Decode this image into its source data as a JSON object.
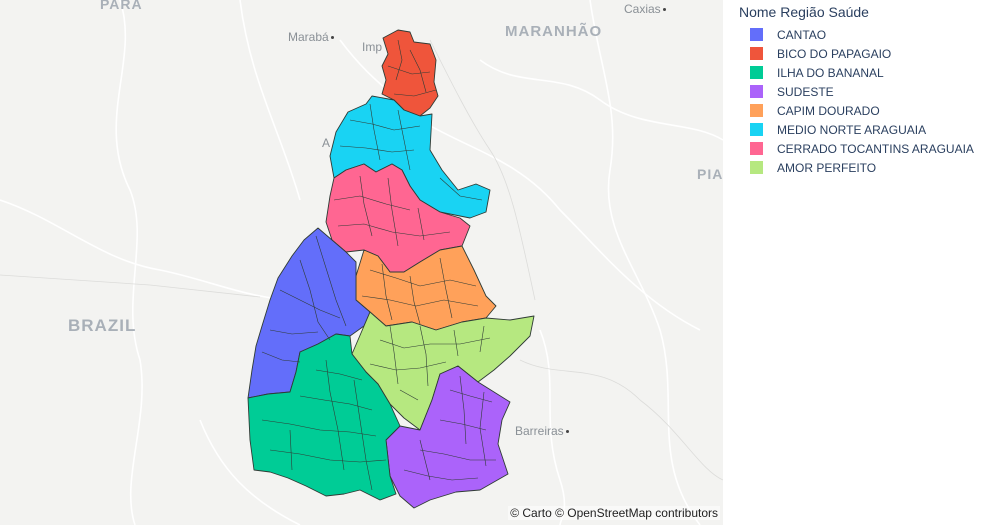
{
  "legend": {
    "title": "Nome Região Saúde",
    "items": [
      {
        "label": "CANTAO",
        "color": "#636efa"
      },
      {
        "label": "BICO DO PAPAGAIO",
        "color": "#ef553b"
      },
      {
        "label": "ILHA DO BANANAL",
        "color": "#00cc96"
      },
      {
        "label": "SUDESTE",
        "color": "#ab63fa"
      },
      {
        "label": "CAPIM DOURADO",
        "color": "#ffa15a"
      },
      {
        "label": "MEDIO NORTE ARAGUAIA",
        "color": "#19d3f3"
      },
      {
        "label": "CERRADO TOCANTINS ARAGUAIA",
        "color": "#ff6692"
      },
      {
        "label": "AMOR PERFEITO",
        "color": "#b6e880"
      }
    ]
  },
  "basemap": {
    "labels": {
      "para": "PARÁ",
      "maranhao": "MARANHÃO",
      "brazil": "BRAZIL",
      "piaui": "PIA",
      "maraba": "Marabá",
      "caxias": "Caxias",
      "barreiras": "Barreiras",
      "imperatriz": "Imp",
      "araguaina": "A"
    },
    "attribution": "© Carto © OpenStreetMap contributors"
  }
}
